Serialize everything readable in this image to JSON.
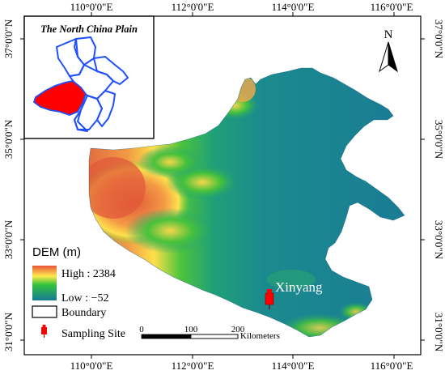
{
  "map": {
    "lon_labels_top": [
      "110°0'0\"E",
      "112°0'0\"E",
      "114°0'0\"E",
      "116°0'0\"E"
    ],
    "lon_labels_bottom": [
      "110°0'0\"E",
      "112°0'0\"E",
      "114°0'0\"E",
      "116°0'0\"E"
    ],
    "lat_labels_left": [
      "37°0'0\"N",
      "35°0'0\"N",
      "33°0'0\"N",
      "31°0'0\"N"
    ],
    "lat_labels_right": [
      "37°0'0\"N",
      "35°0'0\"N",
      "33°0'0\"N",
      "31°0'0\"N"
    ],
    "north_arrow_label": "N",
    "site_label": "Xinyang"
  },
  "inset": {
    "title": "The North China Plain"
  },
  "legend": {
    "title": "DEM (m)",
    "high_label": "High : 2384",
    "low_label": "Low : −52",
    "boundary_label": "Boundary",
    "site_label": "Sampling Site"
  },
  "scale_bar": {
    "ticks": [
      "0",
      "100",
      "200"
    ],
    "unit": "Kilometers"
  },
  "colors": {
    "dem_high": "#e8553a",
    "dem_mid": "#ffe94a",
    "dem_green": "#33c23c",
    "dem_low": "#157a96",
    "highlight": "#ff0000",
    "inset_boundary": "#1e50ff"
  }
}
